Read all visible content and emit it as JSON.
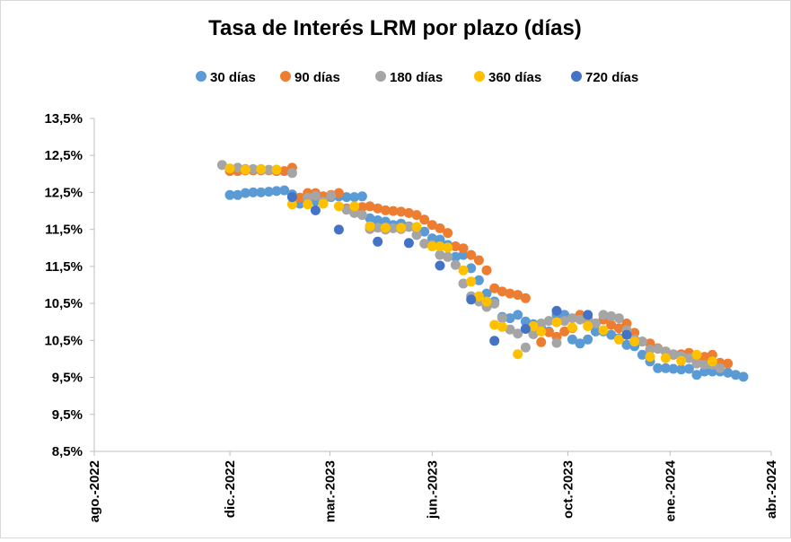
{
  "chart_data": {
    "type": "scatter",
    "title": "Tasa de Interés LRM por plazo (días)",
    "xlabel": "",
    "ylabel": "",
    "legend_position": "top",
    "grid": false,
    "y_tick_labels": [
      "8,5%",
      "9,5%",
      "9,5%",
      "10,5%",
      "10,5%",
      "11,5%",
      "11,5%",
      "12,5%",
      "12,5%",
      "13,5%"
    ],
    "x_tick_labels": [
      "ago.-2022",
      "dic.-2022",
      "mar.-2023",
      "jun.-2023",
      "oct.-2023",
      "ene.-2024",
      "abr.-2024"
    ],
    "x_ticks": [
      "2022-08-01",
      "2022-12-01",
      "2023-03-01",
      "2023-06-01",
      "2023-10-01",
      "2024-01-01",
      "2024-04-01"
    ],
    "xlim": [
      "2022-08-01",
      "2024-04-01"
    ],
    "ylim": [
      8.5,
      13.5
    ],
    "series": [
      {
        "name": "30 días",
        "color": "#5b9bd5",
        "points": [
          [
            "2022-12-01",
            12.35
          ],
          [
            "2022-12-08",
            12.35
          ],
          [
            "2022-12-15",
            12.38
          ],
          [
            "2022-12-22",
            12.39
          ],
          [
            "2022-12-29",
            12.39
          ],
          [
            "2023-01-05",
            12.4
          ],
          [
            "2023-01-12",
            12.41
          ],
          [
            "2023-01-19",
            12.42
          ],
          [
            "2023-01-26",
            12.36
          ],
          [
            "2023-02-02",
            12.22
          ],
          [
            "2023-02-09",
            12.24
          ],
          [
            "2023-02-16",
            12.26
          ],
          [
            "2023-02-23",
            12.26
          ],
          [
            "2023-03-02",
            12.32
          ],
          [
            "2023-03-09",
            12.33
          ],
          [
            "2023-03-16",
            12.32
          ],
          [
            "2023-03-23",
            12.32
          ],
          [
            "2023-03-30",
            12.33
          ],
          [
            "2023-04-06",
            12.0
          ],
          [
            "2023-04-13",
            11.97
          ],
          [
            "2023-04-20",
            11.95
          ],
          [
            "2023-04-27",
            11.9
          ],
          [
            "2023-05-04",
            11.92
          ],
          [
            "2023-05-11",
            11.88
          ],
          [
            "2023-05-18",
            11.85
          ],
          [
            "2023-05-25",
            11.8
          ],
          [
            "2023-06-01",
            11.7
          ],
          [
            "2023-06-08",
            11.68
          ],
          [
            "2023-06-15",
            11.6
          ],
          [
            "2023-06-22",
            11.42
          ],
          [
            "2023-06-29",
            11.45
          ],
          [
            "2023-07-06",
            11.25
          ],
          [
            "2023-07-13",
            11.07
          ],
          [
            "2023-07-20",
            10.87
          ],
          [
            "2023-07-27",
            10.75
          ],
          [
            "2023-08-03",
            10.52
          ],
          [
            "2023-08-10",
            10.5
          ],
          [
            "2023-08-17",
            10.55
          ],
          [
            "2023-08-24",
            10.45
          ],
          [
            "2023-08-31",
            10.41
          ],
          [
            "2023-09-07",
            10.35
          ],
          [
            "2023-09-14",
            10.3
          ],
          [
            "2023-09-21",
            10.55
          ],
          [
            "2023-09-28",
            10.55
          ],
          [
            "2023-10-05",
            10.18
          ],
          [
            "2023-10-12",
            10.12
          ],
          [
            "2023-10-19",
            10.18
          ],
          [
            "2023-10-26",
            10.3
          ],
          [
            "2023-11-02",
            10.3
          ],
          [
            "2023-11-09",
            10.25
          ],
          [
            "2023-11-16",
            10.2
          ],
          [
            "2023-11-23",
            10.1
          ],
          [
            "2023-11-30",
            10.08
          ],
          [
            "2023-12-07",
            9.95
          ],
          [
            "2023-12-14",
            9.85
          ],
          [
            "2023-12-21",
            9.75
          ],
          [
            "2023-12-28",
            9.75
          ],
          [
            "2024-01-04",
            9.74
          ],
          [
            "2024-01-11",
            9.73
          ],
          [
            "2024-01-18",
            9.74
          ],
          [
            "2024-01-25",
            9.65
          ],
          [
            "2024-02-01",
            9.7
          ],
          [
            "2024-02-08",
            9.7
          ],
          [
            "2024-02-15",
            9.7
          ],
          [
            "2024-02-22",
            9.68
          ],
          [
            "2024-02-29",
            9.65
          ],
          [
            "2024-03-07",
            9.62
          ]
        ]
      },
      {
        "name": "90 días",
        "color": "#ed7d31",
        "points": [
          [
            "2022-12-01",
            12.71
          ],
          [
            "2022-12-08",
            12.71
          ],
          [
            "2022-12-15",
            12.72
          ],
          [
            "2022-12-22",
            12.72
          ],
          [
            "2022-12-29",
            12.72
          ],
          [
            "2023-01-05",
            12.72
          ],
          [
            "2023-01-12",
            12.71
          ],
          [
            "2023-01-19",
            12.71
          ],
          [
            "2023-01-26",
            12.76
          ],
          [
            "2023-02-02",
            12.31
          ],
          [
            "2023-02-09",
            12.38
          ],
          [
            "2023-02-16",
            12.38
          ],
          [
            "2023-02-23",
            12.33
          ],
          [
            "2023-03-02",
            12.35
          ],
          [
            "2023-03-09",
            12.38
          ],
          [
            "2023-03-16",
            12.15
          ],
          [
            "2023-03-23",
            12.16
          ],
          [
            "2023-03-30",
            12.17
          ],
          [
            "2023-04-06",
            12.18
          ],
          [
            "2023-04-13",
            12.15
          ],
          [
            "2023-04-20",
            12.12
          ],
          [
            "2023-04-27",
            12.11
          ],
          [
            "2023-05-04",
            12.1
          ],
          [
            "2023-05-11",
            12.08
          ],
          [
            "2023-05-18",
            12.05
          ],
          [
            "2023-05-25",
            11.98
          ],
          [
            "2023-06-01",
            11.9
          ],
          [
            "2023-06-08",
            11.85
          ],
          [
            "2023-06-15",
            11.78
          ],
          [
            "2023-06-22",
            11.58
          ],
          [
            "2023-06-29",
            11.55
          ],
          [
            "2023-07-06",
            11.45
          ],
          [
            "2023-07-13",
            11.37
          ],
          [
            "2023-07-20",
            11.22
          ],
          [
            "2023-07-27",
            10.95
          ],
          [
            "2023-08-03",
            10.9
          ],
          [
            "2023-08-10",
            10.87
          ],
          [
            "2023-08-17",
            10.85
          ],
          [
            "2023-08-24",
            10.8
          ],
          [
            "2023-08-31",
            10.26
          ],
          [
            "2023-09-07",
            10.14
          ],
          [
            "2023-09-14",
            10.29
          ],
          [
            "2023-09-21",
            10.22
          ],
          [
            "2023-09-28",
            10.3
          ],
          [
            "2023-10-05",
            10.35
          ],
          [
            "2023-10-12",
            10.55
          ],
          [
            "2023-10-19",
            10.5
          ],
          [
            "2023-10-26",
            10.42
          ],
          [
            "2023-11-02",
            10.48
          ],
          [
            "2023-11-09",
            10.4
          ],
          [
            "2023-11-16",
            10.35
          ],
          [
            "2023-11-23",
            10.42
          ],
          [
            "2023-11-30",
            10.28
          ],
          [
            "2023-12-07",
            10.15
          ],
          [
            "2023-12-14",
            10.12
          ],
          [
            "2023-12-21",
            10.05
          ],
          [
            "2023-12-28",
            10.0
          ],
          [
            "2024-01-04",
            9.95
          ],
          [
            "2024-01-11",
            9.96
          ],
          [
            "2024-01-18",
            9.98
          ],
          [
            "2024-01-25",
            9.9
          ],
          [
            "2024-02-01",
            9.92
          ],
          [
            "2024-02-08",
            9.95
          ],
          [
            "2024-02-15",
            9.83
          ],
          [
            "2024-02-22",
            9.82
          ]
        ]
      },
      {
        "name": "180 días",
        "color": "#a5a5a5",
        "points": [
          [
            "2022-11-24",
            12.8
          ],
          [
            "2022-12-08",
            12.76
          ],
          [
            "2022-12-15",
            12.74
          ],
          [
            "2022-12-22",
            12.74
          ],
          [
            "2022-12-29",
            12.73
          ],
          [
            "2023-01-05",
            12.73
          ],
          [
            "2023-01-12",
            12.73
          ],
          [
            "2023-01-26",
            12.68
          ],
          [
            "2023-02-09",
            12.31
          ],
          [
            "2023-02-16",
            12.34
          ],
          [
            "2023-02-23",
            12.25
          ],
          [
            "2023-03-02",
            12.34
          ],
          [
            "2023-03-16",
            12.13
          ],
          [
            "2023-03-23",
            12.08
          ],
          [
            "2023-03-30",
            12.05
          ],
          [
            "2023-04-06",
            11.84
          ],
          [
            "2023-04-13",
            11.86
          ],
          [
            "2023-04-20",
            11.83
          ],
          [
            "2023-04-27",
            11.85
          ],
          [
            "2023-05-04",
            11.84
          ],
          [
            "2023-05-11",
            11.87
          ],
          [
            "2023-05-18",
            11.75
          ],
          [
            "2023-05-25",
            11.62
          ],
          [
            "2023-06-01",
            11.6
          ],
          [
            "2023-06-08",
            11.45
          ],
          [
            "2023-06-15",
            11.42
          ],
          [
            "2023-06-22",
            11.3
          ],
          [
            "2023-06-29",
            11.02
          ],
          [
            "2023-07-06",
            10.83
          ],
          [
            "2023-07-13",
            10.75
          ],
          [
            "2023-07-20",
            10.67
          ],
          [
            "2023-07-27",
            10.72
          ],
          [
            "2023-08-03",
            10.5
          ],
          [
            "2023-08-10",
            10.33
          ],
          [
            "2023-08-17",
            10.27
          ],
          [
            "2023-08-24",
            10.06
          ],
          [
            "2023-08-31",
            10.26
          ],
          [
            "2023-09-07",
            10.42
          ],
          [
            "2023-09-14",
            10.46
          ],
          [
            "2023-09-21",
            10.13
          ],
          [
            "2023-09-28",
            10.46
          ],
          [
            "2023-10-05",
            10.5
          ],
          [
            "2023-10-12",
            10.48
          ],
          [
            "2023-10-19",
            10.45
          ],
          [
            "2023-10-26",
            10.42
          ],
          [
            "2023-11-02",
            10.55
          ],
          [
            "2023-11-09",
            10.53
          ],
          [
            "2023-11-16",
            10.5
          ],
          [
            "2023-11-23",
            10.32
          ],
          [
            "2023-11-30",
            10.18
          ],
          [
            "2023-12-07",
            10.15
          ],
          [
            "2023-12-14",
            10.03
          ],
          [
            "2023-12-21",
            10.04
          ],
          [
            "2023-12-28",
            10.0
          ],
          [
            "2024-01-04",
            9.96
          ],
          [
            "2024-01-11",
            9.93
          ],
          [
            "2024-01-18",
            9.9
          ],
          [
            "2024-01-25",
            9.82
          ],
          [
            "2024-02-01",
            9.8
          ],
          [
            "2024-02-08",
            9.8
          ],
          [
            "2024-02-15",
            9.75
          ]
        ]
      },
      {
        "name": "360 días",
        "color": "#ffc000",
        "points": [
          [
            "2022-12-01",
            12.75
          ],
          [
            "2022-12-15",
            12.73
          ],
          [
            "2022-12-29",
            12.74
          ],
          [
            "2023-01-12",
            12.73
          ],
          [
            "2023-01-26",
            12.21
          ],
          [
            "2023-02-09",
            12.21
          ],
          [
            "2023-02-23",
            12.22
          ],
          [
            "2023-03-09",
            12.18
          ],
          [
            "2023-03-23",
            12.18
          ],
          [
            "2023-04-06",
            11.88
          ],
          [
            "2023-04-20",
            11.86
          ],
          [
            "2023-05-04",
            11.86
          ],
          [
            "2023-05-18",
            11.87
          ],
          [
            "2023-06-01",
            11.58
          ],
          [
            "2023-06-08",
            11.58
          ],
          [
            "2023-06-15",
            11.56
          ],
          [
            "2023-06-29",
            11.22
          ],
          [
            "2023-07-06",
            11.05
          ],
          [
            "2023-07-13",
            10.83
          ],
          [
            "2023-07-20",
            10.75
          ],
          [
            "2023-07-27",
            10.4
          ],
          [
            "2023-08-03",
            10.37
          ],
          [
            "2023-08-17",
            9.96
          ],
          [
            "2023-08-31",
            10.38
          ],
          [
            "2023-09-07",
            10.3
          ],
          [
            "2023-09-21",
            10.44
          ],
          [
            "2023-10-05",
            10.36
          ],
          [
            "2023-10-19",
            10.38
          ],
          [
            "2023-11-02",
            10.32
          ],
          [
            "2023-11-16",
            10.18
          ],
          [
            "2023-11-30",
            10.15
          ],
          [
            "2023-12-14",
            9.92
          ],
          [
            "2023-12-28",
            9.9
          ],
          [
            "2024-01-11",
            9.86
          ],
          [
            "2024-01-25",
            9.95
          ],
          [
            "2024-02-08",
            9.85
          ]
        ]
      },
      {
        "name": "720 días",
        "color": "#4472c4",
        "points": [
          [
            "2023-01-26",
            12.32
          ],
          [
            "2023-02-16",
            12.12
          ],
          [
            "2023-03-09",
            11.83
          ],
          [
            "2023-04-13",
            11.65
          ],
          [
            "2023-05-11",
            11.63
          ],
          [
            "2023-06-08",
            11.29
          ],
          [
            "2023-07-06",
            10.78
          ],
          [
            "2023-07-27",
            10.16
          ],
          [
            "2023-08-24",
            10.34
          ],
          [
            "2023-09-21",
            10.61
          ],
          [
            "2023-10-19",
            10.55
          ],
          [
            "2023-11-23",
            10.25
          ]
        ]
      }
    ]
  }
}
